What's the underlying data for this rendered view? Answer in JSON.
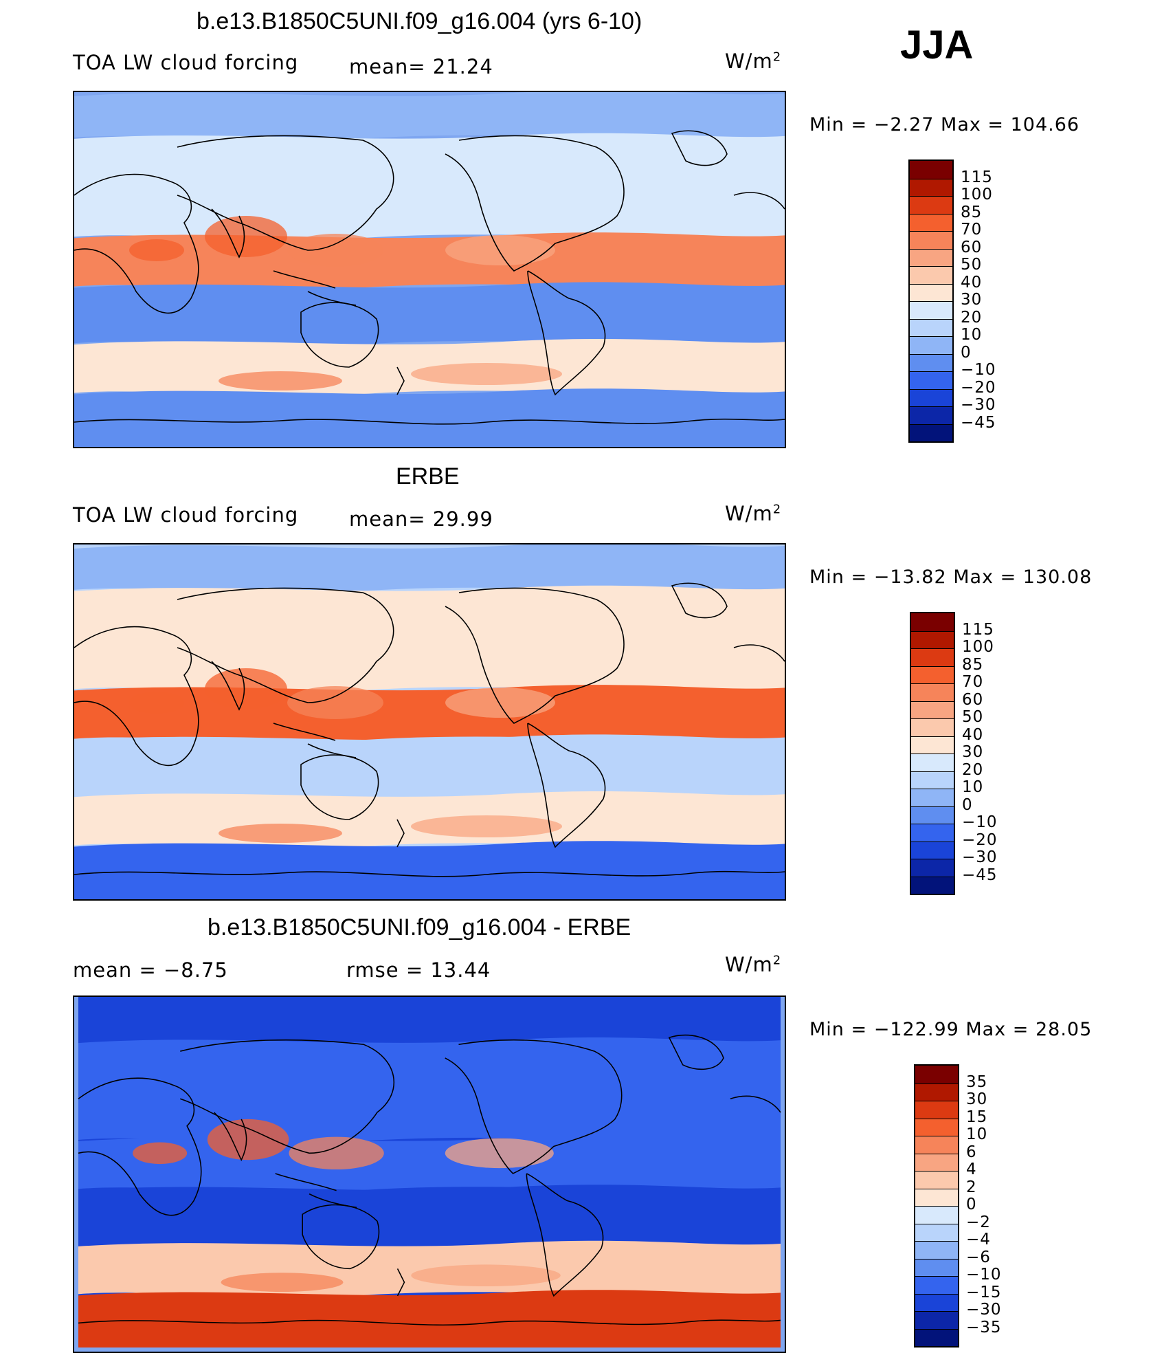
{
  "season": "JJA",
  "panels": [
    {
      "title": "b.e13.B1850C5UNI.f09_g16.004 (yrs 6-10)",
      "left_text": "TOA LW cloud forcing",
      "stat1": "mean=  21.24",
      "stat2": "",
      "unit": "W/m",
      "unit_sup": "2",
      "minmax": "Min =  −2.27 Max = 104.66",
      "levels": [
        "115",
        "100",
        "85",
        "70",
        "60",
        "50",
        "40",
        "30",
        "20",
        "10",
        "0",
        "−10",
        "−20",
        "−30",
        "−45"
      ]
    },
    {
      "title": "ERBE",
      "left_text": "TOA LW cloud forcing",
      "stat1": "mean=  29.99",
      "stat2": "",
      "unit": "W/m",
      "unit_sup": "2",
      "minmax": "Min = −13.82 Max = 130.08",
      "levels": [
        "115",
        "100",
        "85",
        "70",
        "60",
        "50",
        "40",
        "30",
        "20",
        "10",
        "0",
        "−10",
        "−20",
        "−30",
        "−45"
      ]
    },
    {
      "title": "b.e13.B1850C5UNI.f09_g16.004 - ERBE",
      "left_text": "mean =   −8.75",
      "stat1": "rmse =   13.44",
      "stat2": "",
      "unit": "W/m",
      "unit_sup": "2",
      "minmax": "Min = −122.99 Max =  28.05",
      "levels": [
        "35",
        "30",
        "15",
        "10",
        "6",
        "4",
        "2",
        "0",
        "−2",
        "−4",
        "−6",
        "−10",
        "−15",
        "−30",
        "−35"
      ]
    }
  ],
  "colors": [
    "#7a0000",
    "#b01800",
    "#dc3a12",
    "#f4602e",
    "#f6845a",
    "#f8a582",
    "#fbc9ad",
    "#fde6d4",
    "#d8e9fc",
    "#b9d4fb",
    "#8fb5f6",
    "#5f8ef0",
    "#3464ee",
    "#1a44d8",
    "#0c26a8",
    "#02137a"
  ],
  "map_fields": [
    {
      "ocean": "#7fa6f0",
      "bands": [
        {
          "lat": "north",
          "color": "#8fb5f6"
        },
        {
          "lat": "mid-north",
          "color": "#d8e9fc"
        },
        {
          "lat": "tropics",
          "color": "#f6845a"
        },
        {
          "lat": "subtropics-south",
          "color": "#5f8ef0"
        },
        {
          "lat": "mid-south",
          "color": "#fde6d4"
        },
        {
          "lat": "polar-south",
          "color": "#5f8ef0"
        }
      ]
    },
    {
      "ocean": "#b9d4fb",
      "bands": [
        {
          "lat": "north",
          "color": "#8fb5f6"
        },
        {
          "lat": "mid-north",
          "color": "#fde6d4"
        },
        {
          "lat": "tropics",
          "color": "#f4602e"
        },
        {
          "lat": "subtropics-south",
          "color": "#b9d4fb"
        },
        {
          "lat": "mid-south",
          "color": "#fde6d4"
        },
        {
          "lat": "polar-south",
          "color": "#3464ee"
        }
      ]
    },
    {
      "ocean": "#1a44d8",
      "bands": [
        {
          "lat": "north",
          "color": "#1a44d8"
        },
        {
          "lat": "mid-north",
          "color": "#3464ee"
        },
        {
          "lat": "tropics",
          "color": "#3464ee"
        },
        {
          "lat": "subtropics-south",
          "color": "#1a44d8"
        },
        {
          "lat": "mid-south",
          "color": "#fbc9ad"
        },
        {
          "lat": "polar-south",
          "color": "#dc3a12"
        }
      ]
    }
  ]
}
